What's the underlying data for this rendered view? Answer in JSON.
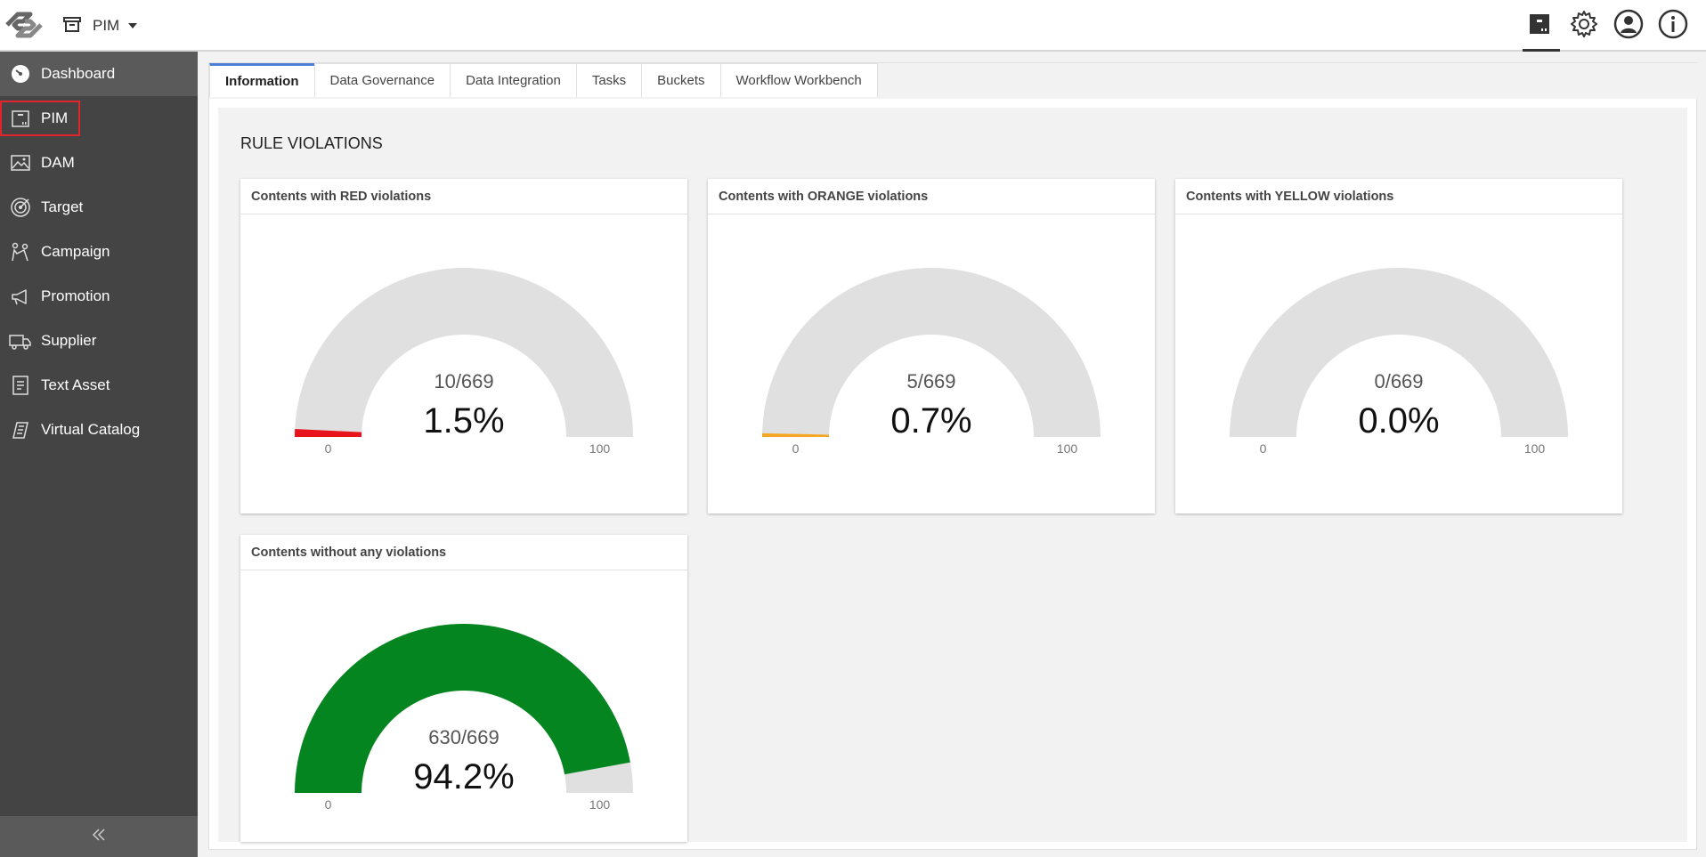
{
  "topbar": {
    "app_name": "PIM",
    "icons": [
      "box-icon",
      "gear-icon",
      "user-icon",
      "info-icon"
    ]
  },
  "sidebar": {
    "items": [
      {
        "label": "Dashboard",
        "icon": "speedometer-icon"
      },
      {
        "label": "PIM",
        "icon": "box-icon"
      },
      {
        "label": "DAM",
        "icon": "image-icon"
      },
      {
        "label": "Target",
        "icon": "target-icon"
      },
      {
        "label": "Campaign",
        "icon": "campaign-icon"
      },
      {
        "label": "Promotion",
        "icon": "megaphone-icon"
      },
      {
        "label": "Supplier",
        "icon": "truck-icon"
      },
      {
        "label": "Text Asset",
        "icon": "document-icon"
      },
      {
        "label": "Virtual Catalog",
        "icon": "catalog-icon"
      }
    ],
    "collapse_icon": "double-chevron-left-icon"
  },
  "tabs": [
    "Information",
    "Data Governance",
    "Data Integration",
    "Tasks",
    "Buckets",
    "Workflow Workbench"
  ],
  "section_title": "RULE VIOLATIONS",
  "gauges": [
    {
      "title": "Contents with RED violations",
      "count": "10/669",
      "percent_label": "1.5%",
      "value": 1.5,
      "min_label": "0",
      "max_label": "100",
      "color": "#e8141b"
    },
    {
      "title": "Contents with ORANGE violations",
      "count": "5/669",
      "percent_label": "0.7%",
      "value": 0.7,
      "min_label": "0",
      "max_label": "100",
      "color": "#f5a623"
    },
    {
      "title": "Contents with YELLOW violations",
      "count": "0/669",
      "percent_label": "0.0%",
      "value": 0.0,
      "min_label": "0",
      "max_label": "100",
      "color": "#f2d600"
    },
    {
      "title": "Contents without any violations",
      "count": "630/669",
      "percent_label": "94.2%",
      "value": 94.2,
      "min_label": "0",
      "max_label": "100",
      "color": "#04851f"
    }
  ],
  "colors": {
    "gauge_track": "#e0e0e0",
    "sidebar_bg": "#444444",
    "tab_accent": "#4a7fd4"
  }
}
